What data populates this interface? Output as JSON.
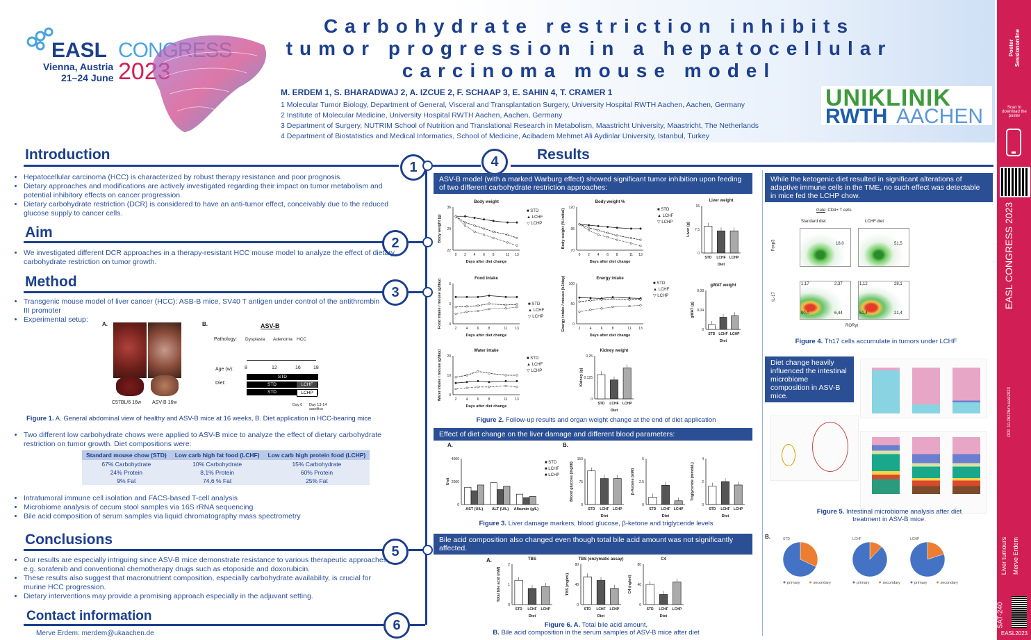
{
  "header": {
    "congress_logo": {
      "brand": "EASL",
      "word": "CONGRESS",
      "place": "Vienna, Austria",
      "dates": "21–24 June",
      "year": "2023"
    },
    "title": "Carbohydrate restriction inhibits tumor progression in a hepatocellular carcinoma mouse model",
    "authors": "M. ERDEM 1, S. BHARADWAJ 2, A. IZCUE 2, F. SCHAAP 3, E. SAHIN 4, T. CRAMER 1",
    "affiliations": [
      "1 Molecular Tumor Biology, Department of General, Visceral and Transplantation Surgery, University Hospital RWTH Aachen, Aachen, Germany",
      "2 Institute of Molecular Medicine, University Hospital RWTH Aachen, Aachen, Germany",
      "3 Department of Surgery, NUTRIM School of Nutrition and Translational Research in Metabolism, Maastricht University, Maastricht, The Netherlands",
      "4 Department of Biostatistics and Medical Informatics, School of Medicine, Acibadem Mehmet Ali Aydinlar University, Istanbul, Turkey"
    ],
    "uniklinik_logo": {
      "line1": "UNIKLINIK",
      "line2a": "RWTH",
      "line2b": "AACHEN"
    }
  },
  "sidebar": {
    "brand": "Poster Sessiononline",
    "scan_text": "Scan to download the poster",
    "congress": "EASL CONGRESS 2023",
    "doi": "DOI: 10.26226/m.easl2023",
    "topic": "Liver tumours",
    "author": "Merve Erdem",
    "code": "SAT-240",
    "footer": "EASL2023"
  },
  "sections": {
    "introduction": {
      "heading": "Introduction",
      "number": "1",
      "bullets": [
        "Hepatocellular carcinoma (HCC) is characterized by robust therapy resistance and poor prognosis.",
        "Dietary approaches and modifications are actively investigated regarding their impact on tumor metabolism and potential inhibitory effects on cancer progression.",
        "Dietary carbohydrate restriction (DCR) is considered to have an anti-tumor effect, conceivably due to the reduced glucose supply to cancer cells."
      ]
    },
    "aim": {
      "heading": "Aim",
      "number": "2",
      "bullets": [
        "We investigated different DCR approaches in a therapy-resistant HCC mouse model to analyze the effect of dietary carbohydrate restriction on tumor growth."
      ]
    },
    "method": {
      "heading": "Method",
      "number": "3",
      "bullets": [
        "Transgenic mouse model of liver cancer (HCC): ASB-B mice, SV40 T antigen under control of the antithrombin III promoter",
        "Experimental setup:"
      ],
      "figure1": {
        "panel_a": "A.",
        "panel_b": "B.",
        "label_healthy": "C57BL/6 16w",
        "label_asvb": "ASV-B 16w",
        "scheme_title": "ASV-B",
        "pathology_label": "Pathology:",
        "stages": [
          "Dysplasia",
          "Adenoma",
          "HCC"
        ],
        "age_label": "Age (w):",
        "ages": [
          "8",
          "12",
          "16",
          "18"
        ],
        "diet_label": "Diet:",
        "diet_bars": [
          {
            "left": "STD",
            "right": ""
          },
          {
            "left": "STD",
            "right": "LCHF"
          },
          {
            "left": "STD",
            "right": "LCHP"
          }
        ],
        "day0": "Day 0",
        "day_end": "Day 13-14 sacrifice",
        "caption_bold": "Figure 1.",
        "caption": " A. General abdominal view of healthy and ASV-B mice at 16 weeks, B. Diet application in HCC-bearing mice"
      },
      "bullets2": [
        "Two different low carbohydrate chows were applied to ASV-B mice to analyze the effect of dietary carbohydrate restriction on tumor growth. Diet compositions were:"
      ],
      "table": {
        "headers": [
          "Standard mouse chow (STD)",
          "Low carb high fat food (LCHF)",
          "Low carb high protein food (LCHP)"
        ],
        "rows": [
          [
            "67% Carbohydrate",
            "10% Carbohydrate",
            "15% Carbohydrate"
          ],
          [
            "24% Protein",
            "8,1% Protein",
            "60% Protein"
          ],
          [
            "9% Fat",
            "74,6 % Fat",
            "25% Fat"
          ]
        ]
      },
      "bullets3": [
        "Intratumoral immune cell isolation and FACS-based T-cell analysis",
        "Microbiome analysis of cecum stool samples via 16S rRNA sequencing",
        "Bile acid composition of serum samples via liquid chromatography mass spectrometry"
      ]
    },
    "conclusions": {
      "heading": "Conclusions",
      "number": "5",
      "bullets": [
        "Our results are especially intriguing since  ASV-B mice demonstrate resistance to various therapeutic approaches, e.g. sorafenib and conventional chemotherapy drugs such as etoposide and doxorubicin.",
        "These results also suggest that macronutrient composition, especially carbohydrate availability, is crucial for murine HCC progression.",
        "Dietary interventions may provide a promising approach especially in the adjuvant setting."
      ]
    },
    "contact": {
      "heading": "Contact information",
      "number": "6",
      "text": "Merve Erdem: merdem@ukaachen.de"
    },
    "results": {
      "heading": "Results",
      "number": "4",
      "box1": "ASV-B model (with a marked Warburg effect) showed significant tumor inhibition upon feeding of two different carbohydrate restriction approaches:",
      "fig2_caption_bold": "Figure 2.",
      "fig2_caption": " Follow-up results and organ weight change at the end of diet application",
      "box2": "Effect of diet change on the liver damage and different blood parameters:",
      "fig3_caption_bold": "Figure 3.",
      "fig3_caption": " Liver damage markers, blood glucose, β-ketone and triglyceride levels",
      "box3": "Bile acid composition also changed even though total bile acid amount was not significantly affected.",
      "fig6_caption_bold": "Figure 6. A.",
      "fig6_caption": " Total bile acid amount,",
      "fig6_caption2_bold": "B.",
      "fig6_caption2": " Bile acid composition in the serum samples of ASV-B mice after diet",
      "box4": "While the ketogenic diet resulted in significant alterations of adaptive immune cells in the TME, no such effect was detectable in mice fed the LCHP chow.",
      "fig4_caption_bold": "Figure 4.",
      "fig4_caption": " Th17 cells accumulate in tumors under LCHF",
      "box5": "Diet change heavily influenced the intestinal microbiome composition in ASV-B mice.",
      "fig5_caption_bold": "Figure 5.",
      "fig5_caption": " Intestinal microbiome analysis after diet treatment in ASV-B mice."
    }
  },
  "legend": {
    "std": "STD",
    "lchf": "LCHF",
    "lchp": "LCHP",
    "xdiet": "Diet",
    "xdays": "Days after diet change"
  },
  "chart_data": [
    {
      "type": "line",
      "title": "Body weight",
      "xlabel": "Days after diet change",
      "ylabel": "Body weight (g)",
      "x": [
        0,
        2,
        4,
        6,
        8,
        11,
        13
      ],
      "ylim": [
        22,
        36
      ],
      "series": [
        {
          "name": "STD",
          "values": [
            33,
            33,
            32.5,
            32,
            31.5,
            31,
            31
          ]
        },
        {
          "name": "LCHF",
          "values": [
            33,
            31,
            30,
            29,
            28,
            27,
            26
          ]
        },
        {
          "name": "LCHP",
          "values": [
            33,
            30,
            28,
            27,
            26,
            24.5,
            23.5
          ]
        }
      ]
    },
    {
      "type": "line",
      "title": "Body weight %",
      "xlabel": "Days after diet change",
      "ylabel": "Body weight (% initial)",
      "x": [
        0,
        2,
        4,
        6,
        8,
        11,
        13
      ],
      "ylim": [
        70,
        120
      ],
      "series": [
        {
          "name": "STD",
          "values": [
            100,
            99,
            98,
            97,
            96,
            95,
            95
          ]
        },
        {
          "name": "LCHF",
          "values": [
            100,
            96,
            93,
            90,
            87,
            84,
            82
          ]
        },
        {
          "name": "LCHP",
          "values": [
            100,
            93,
            88,
            85,
            82,
            78,
            75
          ]
        }
      ]
    },
    {
      "type": "bar",
      "title": "Liver weight",
      "xlabel": "Diet",
      "ylabel": "Liver (g)",
      "categories": [
        "STD",
        "LCHF",
        "LCHP"
      ],
      "values": [
        8.5,
        7,
        7
      ],
      "ylim": [
        0,
        15
      ]
    },
    {
      "type": "line",
      "title": "Food intake",
      "xlabel": "Days after diet change",
      "ylabel": "Food intake / mouse (g/day)",
      "x": [
        2,
        4,
        6,
        8,
        11,
        13
      ],
      "ylim": [
        0,
        6
      ],
      "series": [
        {
          "name": "STD",
          "values": [
            4,
            4,
            4,
            4.2,
            4,
            4
          ]
        },
        {
          "name": "LCHF",
          "values": [
            2.5,
            2.6,
            2.7,
            3,
            2.8,
            2.9
          ]
        },
        {
          "name": "LCHP",
          "values": [
            1.5,
            1.8,
            1.9,
            2.2,
            2.3,
            2.5
          ]
        }
      ]
    },
    {
      "type": "line",
      "title": "Energy intake",
      "xlabel": "Days after diet change",
      "ylabel": "Energy intake / mouse (kJ/day)",
      "x": [
        2,
        4,
        6,
        8,
        11,
        13
      ],
      "ylim": [
        0,
        100
      ],
      "series": [
        {
          "name": "STD",
          "values": [
            65,
            64,
            63,
            66,
            64,
            63
          ]
        },
        {
          "name": "LCHF",
          "values": [
            55,
            58,
            60,
            62,
            60,
            60
          ]
        },
        {
          "name": "LCHP",
          "values": [
            30,
            35,
            38,
            42,
            44,
            46
          ]
        }
      ]
    },
    {
      "type": "bar",
      "title": "gWAT weight",
      "xlabel": "Diet",
      "ylabel": "gWAT (g)",
      "categories": [
        "STD",
        "LCHF",
        "LCHP"
      ],
      "values": [
        0.01,
        0.025,
        0.028
      ],
      "ylim": [
        0,
        0.08
      ]
    },
    {
      "type": "line",
      "title": "Water intake",
      "xlabel": "Days after diet change",
      "ylabel": "Water intake / mouse (g/day)",
      "x": [
        2,
        4,
        6,
        8,
        11,
        13
      ],
      "ylim": [
        0,
        20
      ],
      "series": [
        {
          "name": "STD",
          "values": [
            6,
            6.5,
            7,
            6.5,
            7,
            7
          ]
        },
        {
          "name": "LCHF",
          "values": [
            9,
            10,
            12,
            11,
            10,
            10
          ]
        },
        {
          "name": "LCHP",
          "values": [
            3,
            3.5,
            4,
            4,
            4.5,
            4
          ]
        }
      ]
    },
    {
      "type": "bar",
      "title": "Kidney weight",
      "xlabel": "Diet",
      "ylabel": "Kidney (g)",
      "categories": [
        "STD",
        "LCHF",
        "LCHP"
      ],
      "values": [
        0.14,
        0.11,
        0.18
      ],
      "ylim": [
        0,
        0.25
      ]
    },
    {
      "type": "bar",
      "xlabel": "",
      "ylabel": "Unit",
      "categories": [
        "AST (U/L)",
        "ALT (U/L)",
        "Albumin (g/L)"
      ],
      "series": [
        {
          "name": "STD",
          "values": [
            1500,
            1900,
            45
          ]
        },
        {
          "name": "LCHF",
          "values": [
            1200,
            1300,
            30
          ]
        },
        {
          "name": "LCHP",
          "values": [
            1700,
            1600,
            35
          ]
        }
      ]
    },
    {
      "type": "bar",
      "xlabel": "Diet",
      "ylabel": "Blood glucose (mg/dl)",
      "categories": [
        "STD",
        "LCHF",
        "LCHP"
      ],
      "values": [
        110,
        85,
        85
      ],
      "ylim": [
        0,
        150
      ]
    },
    {
      "type": "bar",
      "xlabel": "Diet",
      "ylabel": "β-Ketone (mM)",
      "categories": [
        "STD",
        "LCHF",
        "LCHP"
      ],
      "values": [
        0.8,
        2.1,
        0.4
      ],
      "ylim": [
        0,
        5
      ]
    },
    {
      "type": "bar",
      "xlabel": "Diet",
      "ylabel": "Triglyceride (mmol/L)",
      "categories": [
        "STD",
        "LCHF",
        "LCHP"
      ],
      "values": [
        1.6,
        2.0,
        1.7
      ],
      "ylim": [
        0,
        4
      ]
    },
    {
      "type": "bar",
      "title": "TBS",
      "xlabel": "Diet",
      "ylabel": "Total bile acid (mM)",
      "categories": [
        "STD",
        "LCHF",
        "LCHP"
      ],
      "values": [
        1.2,
        0.8,
        0.9
      ],
      "ylim": [
        0,
        2
      ]
    },
    {
      "type": "bar",
      "title": "TBS (enzymatic assay)",
      "xlabel": "Diet",
      "ylabel": "TBS (mg/ml)",
      "categories": [
        "STD",
        "LCHF",
        "LCHP"
      ],
      "values": [
        55,
        48,
        32
      ],
      "ylim": [
        0,
        80
      ]
    },
    {
      "type": "bar",
      "title": "C4",
      "xlabel": "Diet",
      "ylabel": "C4 (ng/ml)",
      "categories": [
        "STD",
        "LCHF",
        "LCHP"
      ],
      "values": [
        40,
        20,
        45
      ],
      "ylim": [
        0,
        80
      ]
    },
    {
      "type": "pie",
      "title": "STD",
      "categories": [
        "primary",
        "secondary"
      ],
      "values": [
        68,
        32
      ]
    },
    {
      "type": "pie",
      "title": "LCHF",
      "categories": [
        "primary",
        "secondary"
      ],
      "values": [
        88,
        12
      ]
    },
    {
      "type": "pie",
      "title": "LCHP",
      "categories": [
        "primary",
        "secondary"
      ],
      "values": [
        80,
        20
      ]
    }
  ],
  "colors": {
    "navy": "#1c3f8c",
    "box": "#2b4f94",
    "magenta": "#d11f55",
    "pie_primary": "#4472c4",
    "pie_secondary": "#ed7d31",
    "green": "#3e9a3c",
    "rwth": "#1d5eab"
  }
}
